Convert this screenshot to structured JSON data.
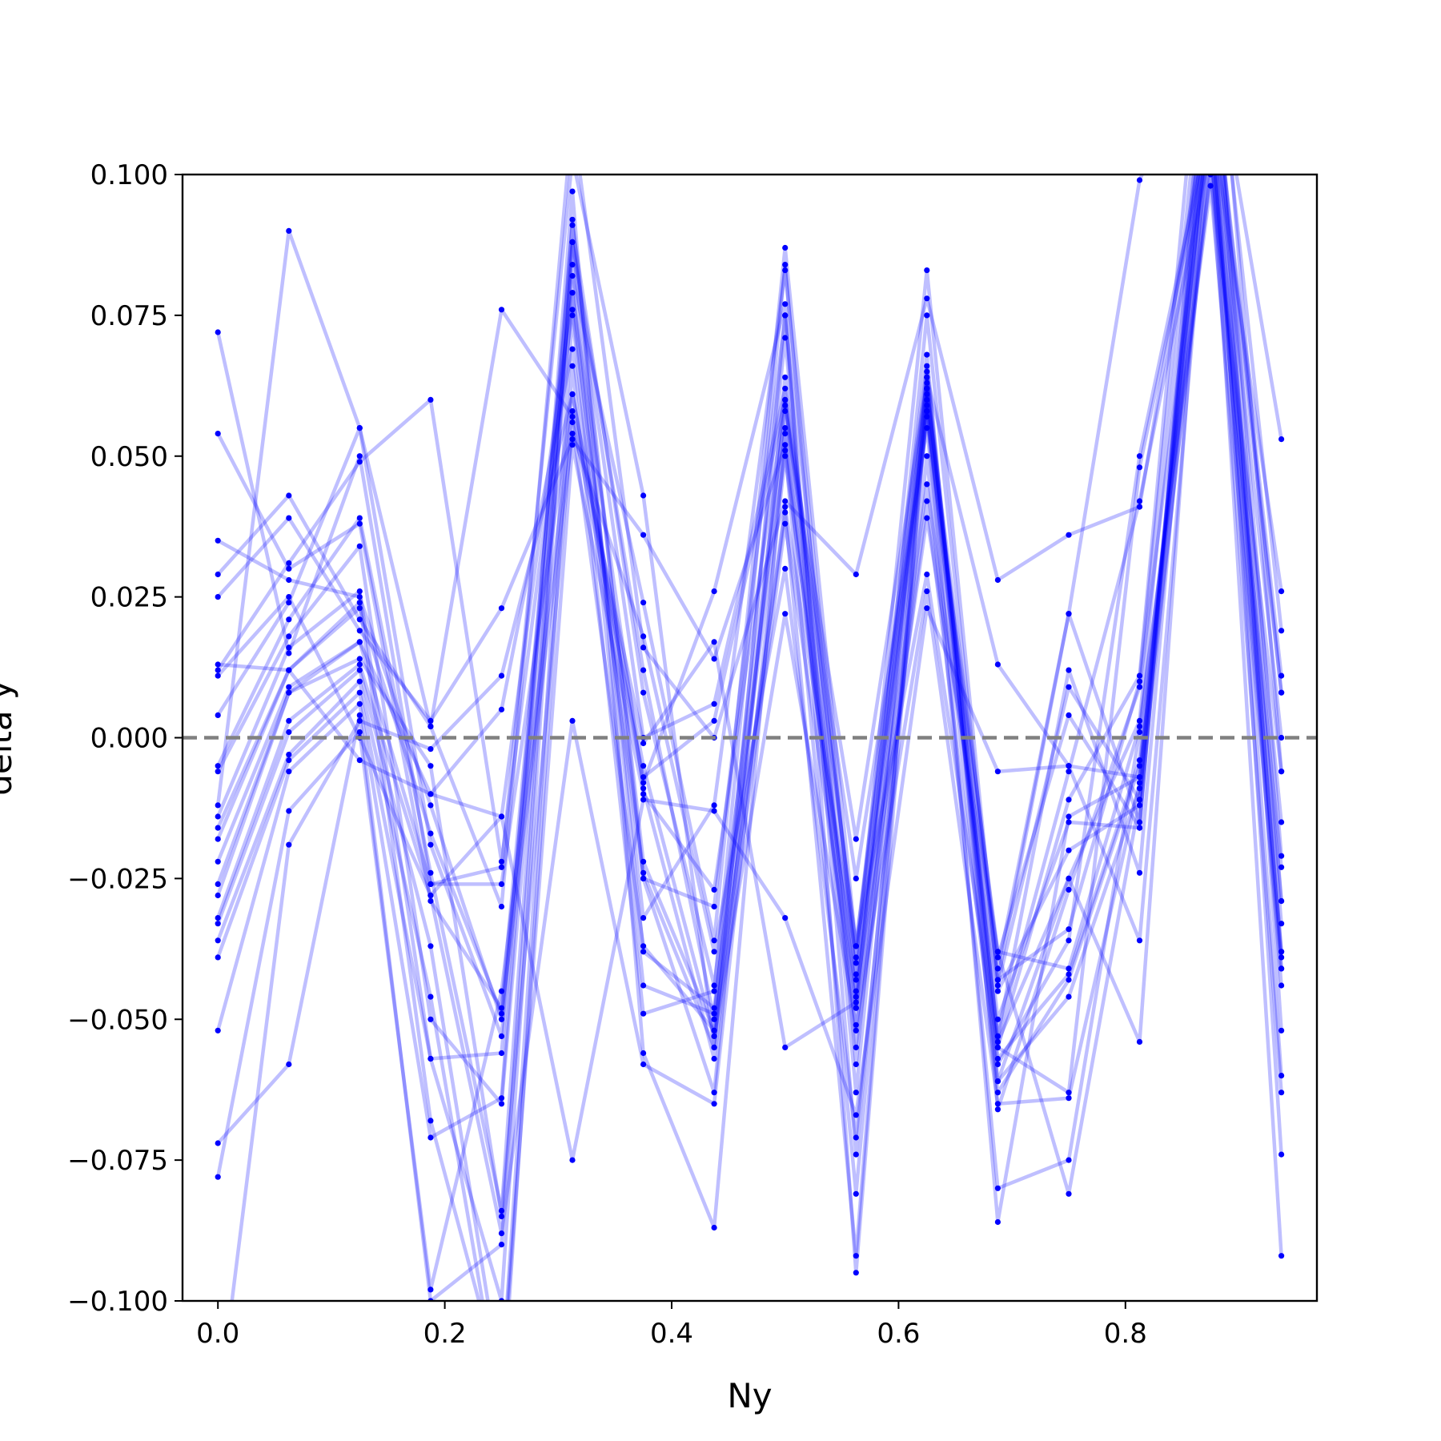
{
  "chart_data": {
    "type": "line",
    "xlabel": "Ny",
    "ylabel": "delta y",
    "xlim": [
      -0.0312,
      0.9688
    ],
    "ylim": [
      -0.1,
      0.1
    ],
    "x_ticks": [
      0.0,
      0.2,
      0.4,
      0.6,
      0.8
    ],
    "x_tick_labels": [
      "0.0",
      "0.2",
      "0.4",
      "0.6",
      "0.8"
    ],
    "y_ticks": [
      -0.1,
      -0.075,
      -0.05,
      -0.025,
      0.0,
      0.025,
      0.05,
      0.075,
      0.1
    ],
    "y_tick_labels": [
      "−0.100",
      "−0.075",
      "−0.050",
      "−0.025",
      "0.000",
      "0.025",
      "0.050",
      "0.075",
      "0.100"
    ],
    "reference_line": {
      "y": 0.0,
      "style": "dashed",
      "color": "#808080"
    },
    "line_color": "#0000ff",
    "line_alpha": 0.25,
    "marker_color": "#0000ff",
    "grid": false,
    "legend": false,
    "x": [
      0.0,
      0.0625,
      0.125,
      0.1875,
      0.25,
      0.3125,
      0.375,
      0.4375,
      0.5,
      0.5625,
      0.625,
      0.6875,
      0.75,
      0.8125,
      0.875,
      0.9375
    ],
    "series": [
      {
        "values": [
          0.072,
          0.015,
          0.05,
          -0.026,
          -0.023,
          0.103,
          0.043,
          -0.055,
          0.075,
          -0.074,
          0.058,
          -0.055,
          -0.011,
          0.011,
          0.146,
          -0.006
        ]
      },
      {
        "values": [
          0.054,
          0.03,
          0.038,
          -0.029,
          -0.048,
          0.088,
          0.012,
          -0.05,
          0.071,
          -0.063,
          0.062,
          -0.05,
          -0.015,
          -0.016,
          0.131,
          -0.021
        ]
      },
      {
        "values": [
          0.035,
          0.028,
          0.025,
          -0.012,
          -0.05,
          0.082,
          0.024,
          -0.036,
          0.087,
          -0.037,
          0.068,
          -0.066,
          -0.027,
          0.009,
          0.111,
          0.026
        ]
      },
      {
        "values": [
          0.029,
          0.043,
          0.021,
          0.002,
          0.076,
          0.057,
          -0.007,
          0.003,
          0.06,
          -0.048,
          0.075,
          -0.044,
          0.009,
          -0.011,
          0.123,
          0.011
        ]
      },
      {
        "values": [
          0.025,
          0.039,
          0.019,
          0.003,
          0.023,
          0.053,
          0.036,
          0.014,
          0.052,
          -0.052,
          0.057,
          -0.041,
          0.022,
          0.099,
          0.127,
          0.053
        ]
      },
      {
        "values": [
          0.012,
          0.031,
          0.049,
          0.06,
          -0.022,
          0.076,
          -0.024,
          -0.055,
          0.059,
          -0.018,
          0.063,
          -0.053,
          0.012,
          -0.024,
          0.119,
          0.008
        ]
      },
      {
        "values": [
          0.004,
          0.024,
          0.055,
          -0.019,
          -0.053,
          0.091,
          0.008,
          -0.044,
          0.058,
          -0.025,
          0.055,
          -0.063,
          -0.043,
          -0.005,
          0.108,
          -0.029
        ]
      },
      {
        "values": [
          -0.005,
          0.021,
          0.039,
          -0.024,
          -0.084,
          0.092,
          -0.025,
          -0.03,
          0.075,
          -0.04,
          0.083,
          -0.043,
          -0.034,
          0.01,
          0.135,
          -0.052
        ]
      },
      {
        "values": [
          -0.006,
          0.018,
          0.034,
          -0.05,
          -0.065,
          0.079,
          -0.032,
          -0.012,
          0.083,
          -0.043,
          0.059,
          -0.053,
          -0.006,
          0.042,
          0.105,
          -0.039
        ]
      },
      {
        "values": [
          -0.014,
          0.016,
          0.026,
          -0.057,
          -0.1,
          0.088,
          -0.022,
          -0.052,
          0.04,
          -0.092,
          0.065,
          -0.054,
          -0.025,
          -0.054,
          0.118,
          -0.074
        ]
      },
      {
        "values": [
          -0.016,
          0.012,
          0.024,
          -0.068,
          -0.115,
          0.075,
          -0.044,
          -0.049,
          0.055,
          -0.055,
          0.042,
          -0.061,
          -0.046,
          -0.009,
          0.101,
          -0.063
        ]
      },
      {
        "values": [
          -0.018,
          0.012,
          0.023,
          -0.017,
          -0.049,
          0.054,
          0.018,
          -0.038,
          0.03,
          -0.071,
          0.05,
          -0.08,
          -0.075,
          0.001,
          0.1,
          -0.006
        ]
      },
      {
        "values": [
          -0.022,
          0.009,
          0.017,
          -0.01,
          -0.014,
          0.079,
          -0.009,
          -0.057,
          0.038,
          -0.048,
          0.039,
          -0.038,
          -0.041,
          0.002,
          0.098,
          -0.041
        ]
      },
      {
        "values": [
          -0.026,
          0.008,
          0.017,
          -0.026,
          -0.026,
          0.061,
          -0.005,
          -0.053,
          0.022,
          -0.051,
          0.026,
          -0.065,
          -0.064,
          -0.008,
          0.119,
          -0.033
        ]
      },
      {
        "values": [
          -0.028,
          0.008,
          0.014,
          -0.005,
          -0.085,
          0.056,
          -0.037,
          -0.052,
          0.041,
          -0.039,
          0.066,
          -0.058,
          -0.036,
          0.05,
          0.11,
          -0.038
        ]
      },
      {
        "values": [
          -0.032,
          0.003,
          0.013,
          -0.028,
          -0.088,
          0.003,
          -0.058,
          -0.065,
          0.05,
          -0.045,
          0.058,
          -0.038,
          -0.081,
          -0.011,
          0.125,
          -0.041
        ]
      },
      {
        "values": [
          -0.033,
          0.001,
          0.012,
          -0.037,
          -0.115,
          0.052,
          -0.01,
          -0.027,
          0.06,
          -0.042,
          0.06,
          -0.057,
          -0.042,
          -0.004,
          0.113,
          -0.06
        ]
      },
      {
        "values": [
          -0.036,
          -0.003,
          0.01,
          -0.046,
          -0.12,
          0.066,
          -0.049,
          -0.045,
          0.084,
          -0.058,
          0.064,
          -0.061,
          -0.025,
          0.003,
          0.13,
          -0.029
        ]
      },
      {
        "values": [
          -0.039,
          -0.004,
          0.008,
          -0.057,
          -0.056,
          0.084,
          -0.038,
          -0.048,
          0.051,
          -0.081,
          0.058,
          -0.086,
          -0.014,
          -0.007,
          0.11,
          -0.015
        ]
      },
      {
        "values": [
          -0.052,
          -0.006,
          0.006,
          -0.071,
          -0.064,
          0.097,
          -0.056,
          -0.087,
          0.054,
          -0.046,
          0.045,
          -0.045,
          -0.02,
          -0.012,
          0.104,
          -0.023
        ]
      },
      {
        "values": [
          -0.072,
          -0.058,
          0.004,
          -0.1,
          -0.09,
          0.088,
          0.0,
          0.006,
          0.062,
          -0.037,
          0.062,
          -0.039,
          0.004,
          -0.016,
          0.135,
          0.019
        ]
      },
      {
        "values": [
          -0.078,
          -0.013,
          0.001,
          -0.098,
          -0.045,
          0.058,
          -0.001,
          0.017,
          -0.055,
          -0.047,
          0.064,
          0.013,
          -0.005,
          -0.007,
          0.114,
          -0.038
        ]
      },
      {
        "values": [
          -0.12,
          -0.019,
          0.003,
          -0.002,
          0.011,
          0.061,
          -0.008,
          0.026,
          0.077,
          -0.095,
          0.061,
          -0.043,
          0.022,
          -0.015,
          0.123,
          0.008
        ]
      },
      {
        "values": [
          0.013,
          0.012,
          -0.004,
          -0.01,
          0.005,
          0.069,
          -0.025,
          -0.063,
          0.064,
          -0.037,
          0.029,
          -0.055,
          -0.063,
          0.048,
          0.108,
          -0.092
        ]
      },
      {
        "values": [
          -0.012,
          0.09,
          0.055,
          0.002,
          -0.03,
          0.11,
          0.016,
          0.0,
          0.042,
          0.029,
          0.078,
          0.028,
          0.036,
          0.041,
          0.115,
          0.0
        ]
      },
      {
        "values": [
          0.011,
          0.025,
          0.0,
          -0.028,
          -0.014,
          -0.075,
          -0.011,
          -0.013,
          -0.032,
          -0.067,
          0.023,
          -0.006,
          -0.005,
          -0.036,
          0.108,
          -0.044
        ]
      }
    ]
  }
}
